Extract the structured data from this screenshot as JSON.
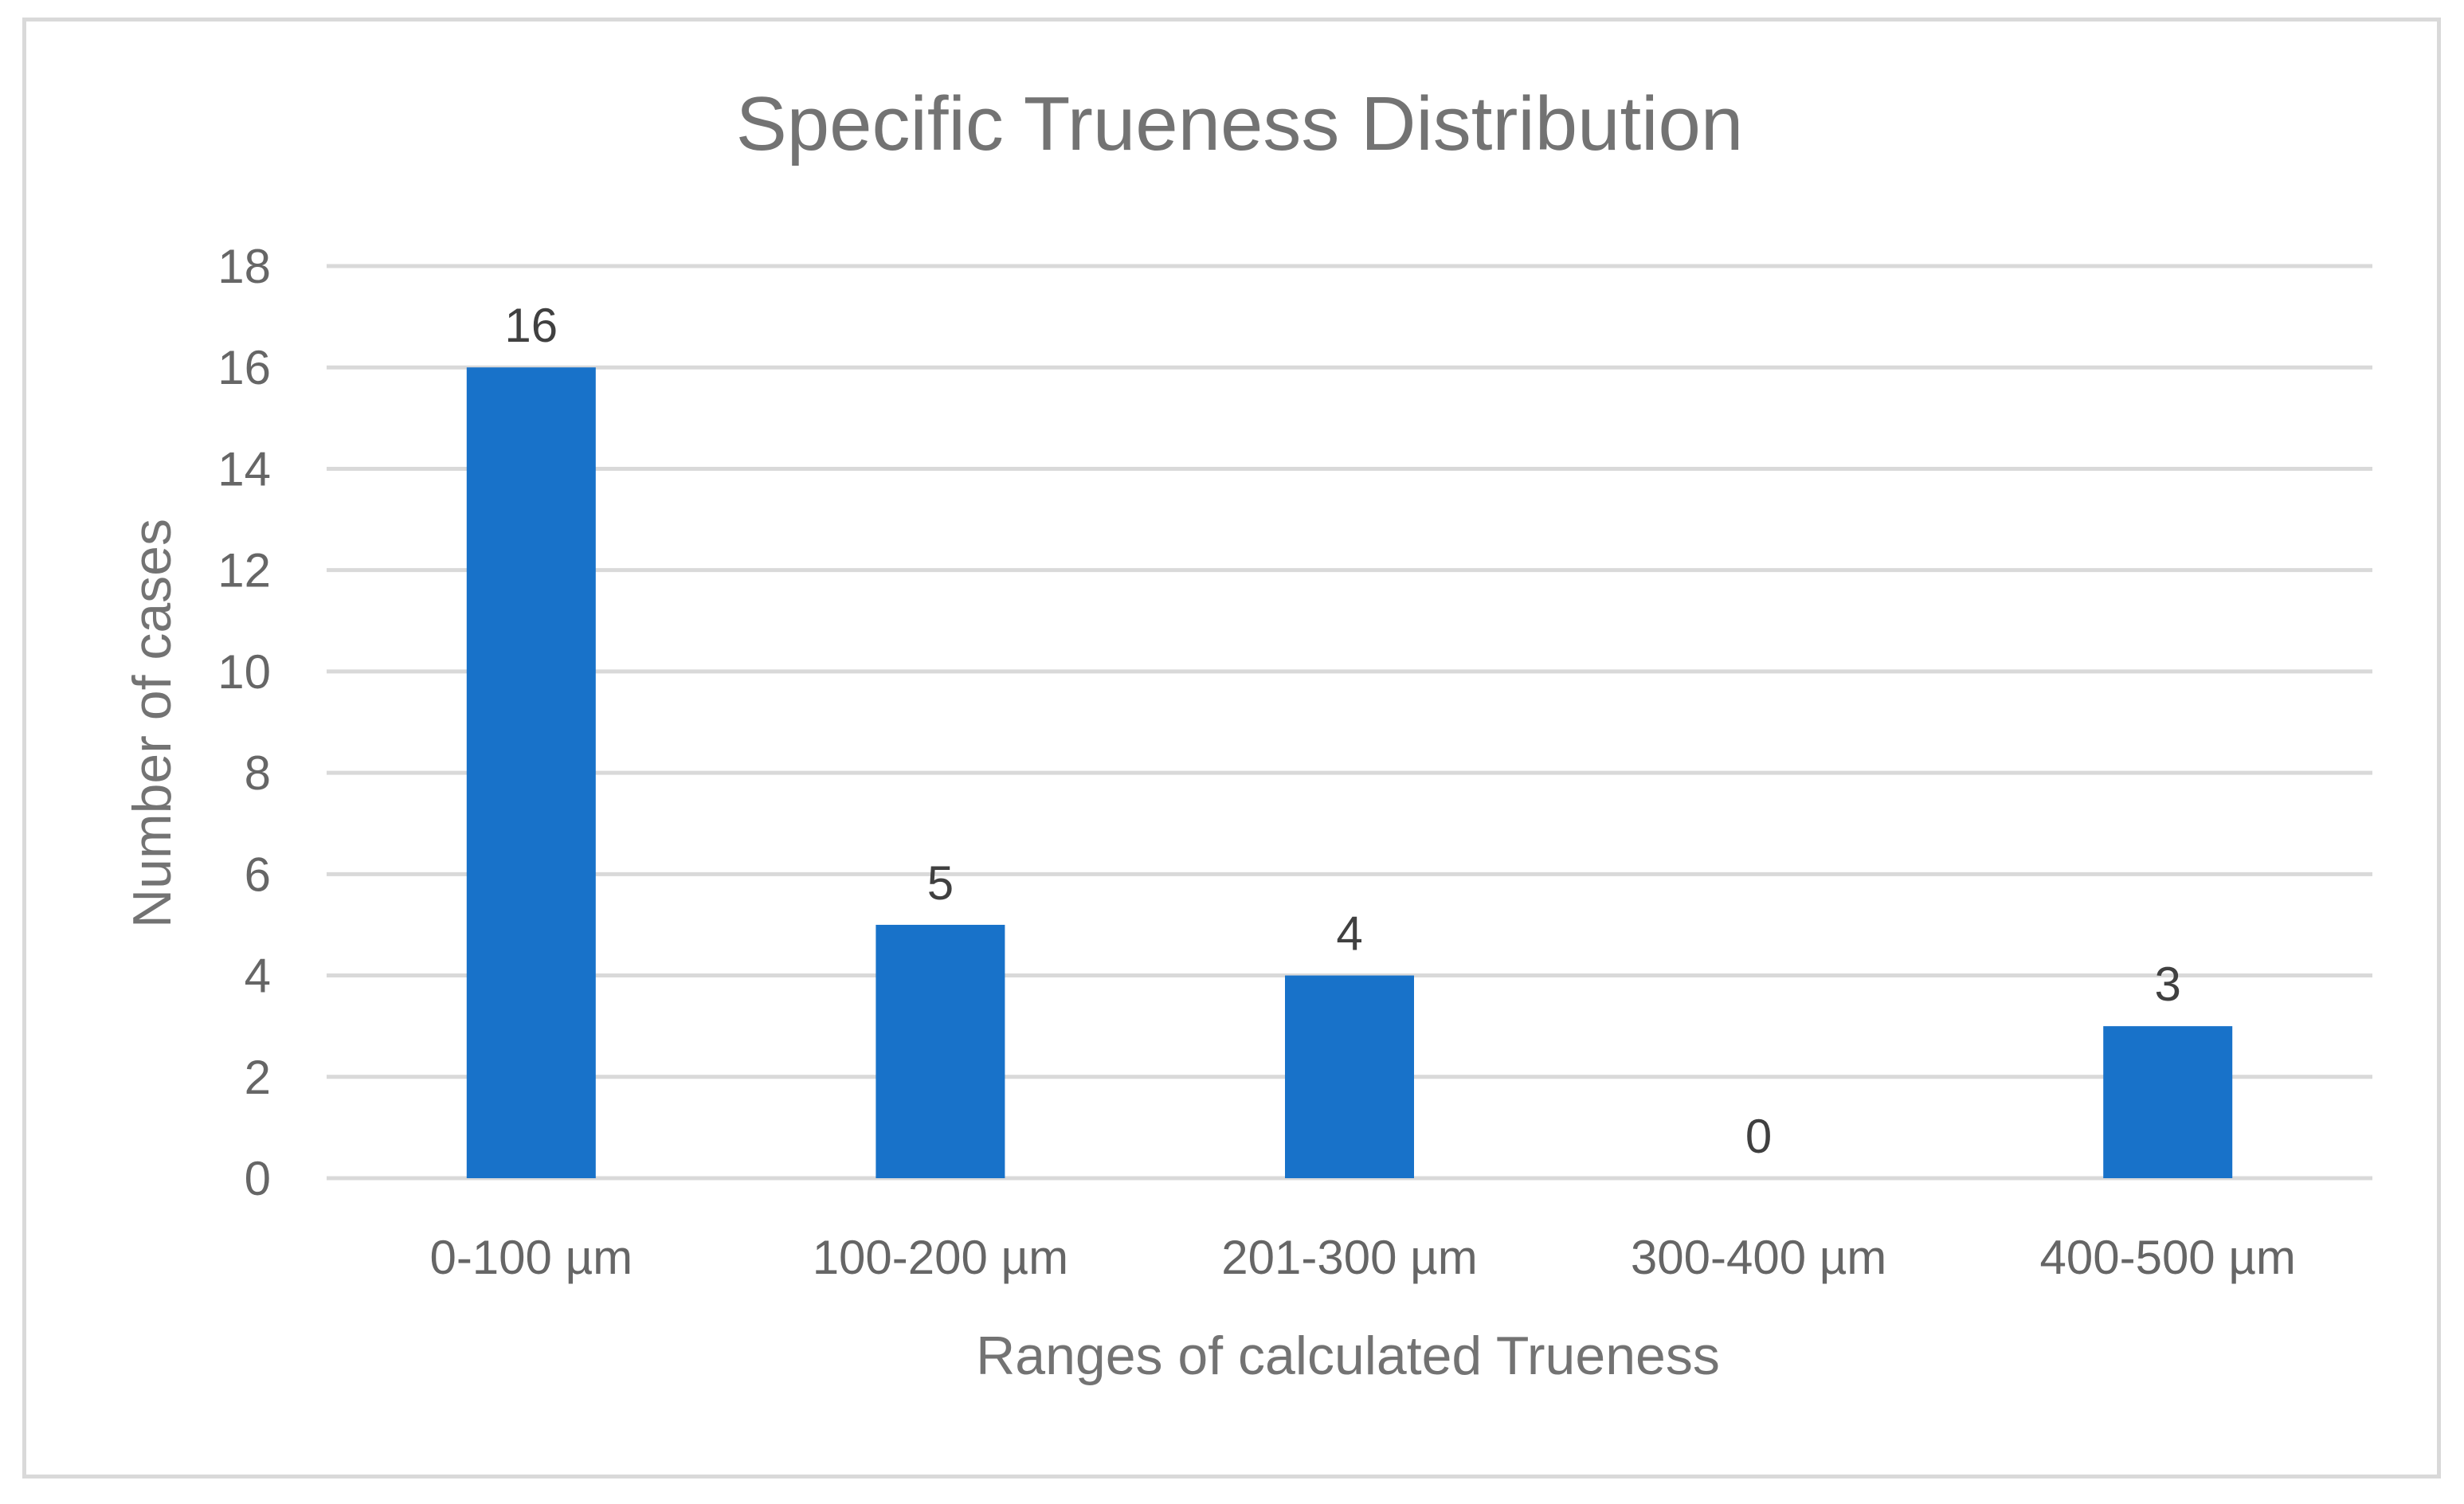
{
  "chart_data": {
    "type": "bar",
    "title": "Specific Trueness Distribution",
    "xlabel": "Ranges of calculated Trueness",
    "ylabel": "Number of cases",
    "categories": [
      "0-100 µm",
      "100-200 µm",
      "201-300 µm",
      "300-400 µm",
      "400-500 µm"
    ],
    "values": [
      16,
      5,
      4,
      0,
      3
    ],
    "data_labels": [
      "16",
      "5",
      "4",
      "0",
      "3"
    ],
    "ylim": [
      0,
      18
    ],
    "yticks": [
      "0",
      "2",
      "4",
      "6",
      "8",
      "10",
      "12",
      "14",
      "16",
      "18"
    ],
    "grid": true,
    "legend": "none",
    "colors": {
      "bar": "#1872c9",
      "grid": "#d9d9d9",
      "frame": "#d9d9d9"
    }
  }
}
